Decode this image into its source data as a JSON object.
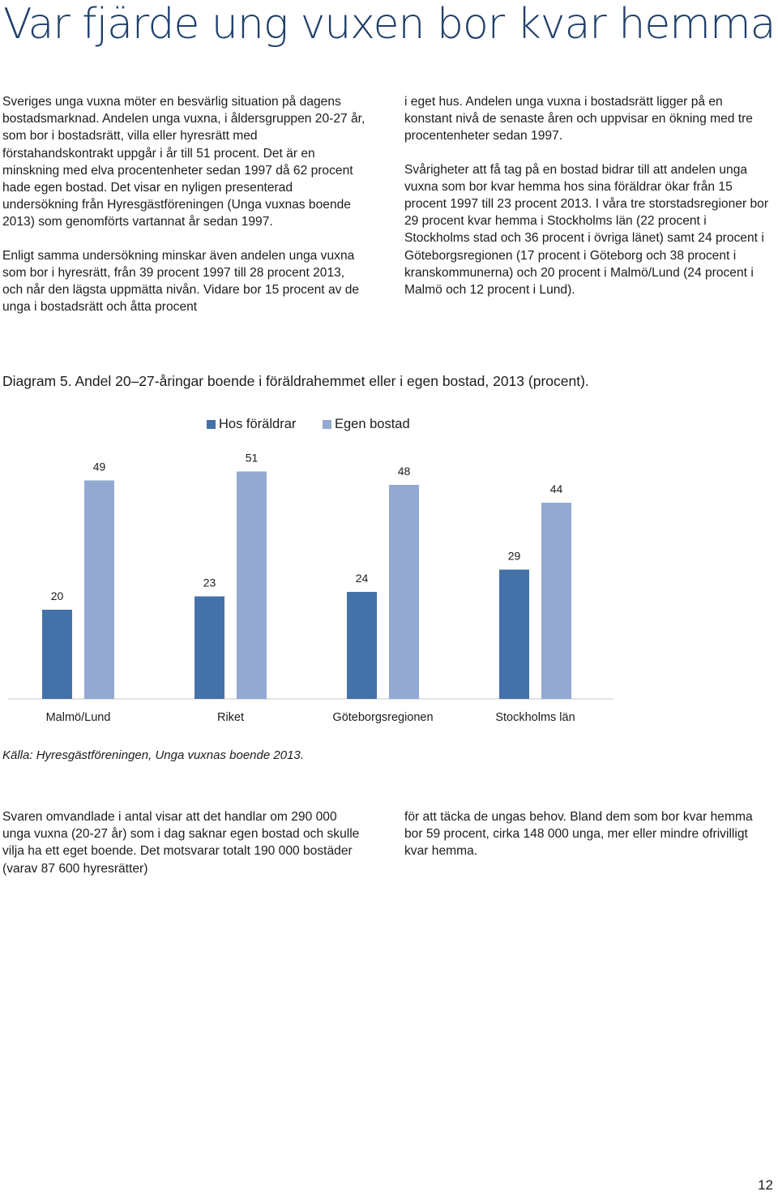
{
  "page": {
    "title": "Var fjärde ung vuxen bor kvar hemma",
    "page_number": "12"
  },
  "intro": {
    "left_col": [
      "Sveriges unga vuxna möter en besvärlig situation på dagens bostadsmarknad. Andelen unga vuxna, i åldersgruppen 20-27 år, som bor i bostadsrätt, villa eller hyresrätt med förstahandskontrakt uppgår i år till 51 procent. Det är en minskning med elva procentenheter sedan 1997 då 62 procent hade egen bostad. Det visar en nyligen presenterad undersökning från Hyresgästföreningen (Unga vuxnas boende 2013) som genomförts vartannat år sedan 1997.",
      "Enligt samma undersökning minskar även andelen unga vuxna som bor i hyresrätt, från 39 procent 1997 till 28 procent 2013, och når den lägsta uppmätta nivån. Vidare bor 15 procent av de unga i bostadsrätt och åtta procent"
    ],
    "right_col": [
      "i eget hus. Andelen unga vuxna i bostadsrätt ligger på en konstant nivå de senaste åren och uppvisar en ökning med tre procentenheter sedan 1997.",
      "Svårigheter att få tag på en bostad bidrar till att andelen unga vuxna som bor kvar hemma hos sina föräldrar ökar från 15 procent 1997 till 23 procent 2013. I våra tre storstadsregioner bor 29 procent kvar hemma i Stockholms län (22 procent i Stockholms stad och 36 procent i övriga länet) samt 24 procent i Göteborgsregionen (17 procent i Göteborg och 38 procent i kranskommunerna) och 20 procent i Malmö/Lund (24 procent i Malmö och 12 procent i Lund)."
    ]
  },
  "figure": {
    "caption": "Diagram 5. Andel 20–27-åringar boende i föräldrahemmet eller i egen bostad, 2013 (procent).",
    "source": "Källa: Hyresgästföreningen, Unga vuxnas boende 2013."
  },
  "chart_data": {
    "type": "bar",
    "categories": [
      "Malmö/Lund",
      "Riket",
      "Göteborgsregionen",
      "Stockholms län"
    ],
    "series": [
      {
        "name": "Hos föräldrar",
        "values": [
          20,
          23,
          24,
          29
        ],
        "color": "#4471a7"
      },
      {
        "name": "Egen bostad",
        "values": [
          49,
          51,
          48,
          44
        ],
        "color": "#93a9d2"
      }
    ],
    "legend_position": "top",
    "grid": false,
    "data_labels": true,
    "ylim": [
      0,
      60
    ]
  },
  "outro": {
    "left_col": "Svaren omvandlade i antal visar att det handlar om 290 000 unga vuxna (20-27 år) som i dag saknar egen bostad och skulle vilja ha ett eget boende. Det motsvarar totalt 190 000 bostäder (varav 87 600 hyresrätter)",
    "right_col": "för att täcka de ungas behov. Bland dem som bor kvar hemma bor 59 procent, cirka 148 000 unga, mer eller mindre ofrivilligt kvar hemma."
  }
}
